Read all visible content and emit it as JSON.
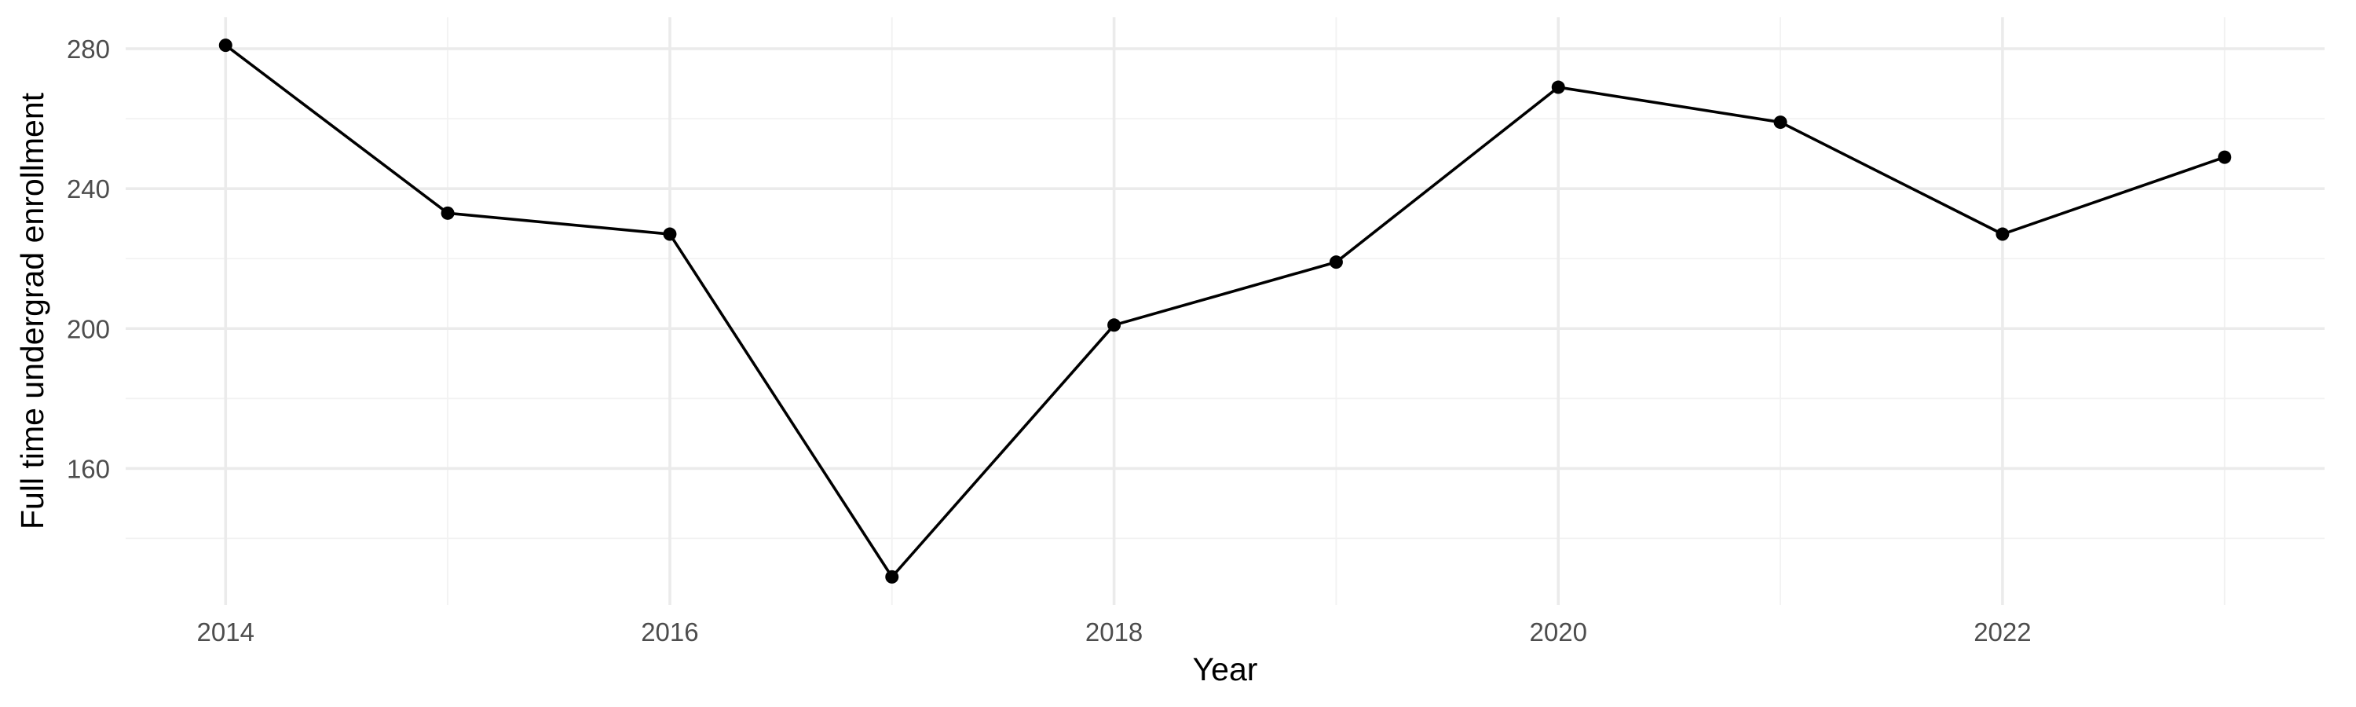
{
  "chart_data": {
    "type": "line",
    "title": "",
    "xlabel": "Year",
    "ylabel": "Full time undergrad enrollment",
    "x": [
      2014,
      2015,
      2016,
      2017,
      2018,
      2019,
      2020,
      2021,
      2022,
      2023
    ],
    "series": [
      {
        "values": [
          281,
          233,
          227,
          129,
          201,
          219,
          269,
          259,
          227,
          249
        ],
        "color": "#000000"
      }
    ],
    "xlim": [
      2013.55,
      2023.45
    ],
    "ylim": [
      121,
      289
    ],
    "x_ticks": [
      2014,
      2016,
      2018,
      2020,
      2022
    ],
    "x_tick_labels": [
      "2014",
      "2016",
      "2018",
      "2020",
      "2022"
    ],
    "y_ticks": [
      160,
      200,
      240,
      280
    ],
    "y_tick_labels": [
      "160",
      "200",
      "240",
      "280"
    ],
    "x_minor_ticks": [
      2015,
      2017,
      2019,
      2021,
      2023
    ],
    "y_minor_ticks": [
      140,
      180,
      220,
      260
    ],
    "grid": true,
    "legend": "none",
    "colors": {
      "grid_major": "#ebebeb",
      "grid_minor": "#f2f2f2",
      "tick_label": "#4d4d4d",
      "line": "#000000"
    }
  }
}
